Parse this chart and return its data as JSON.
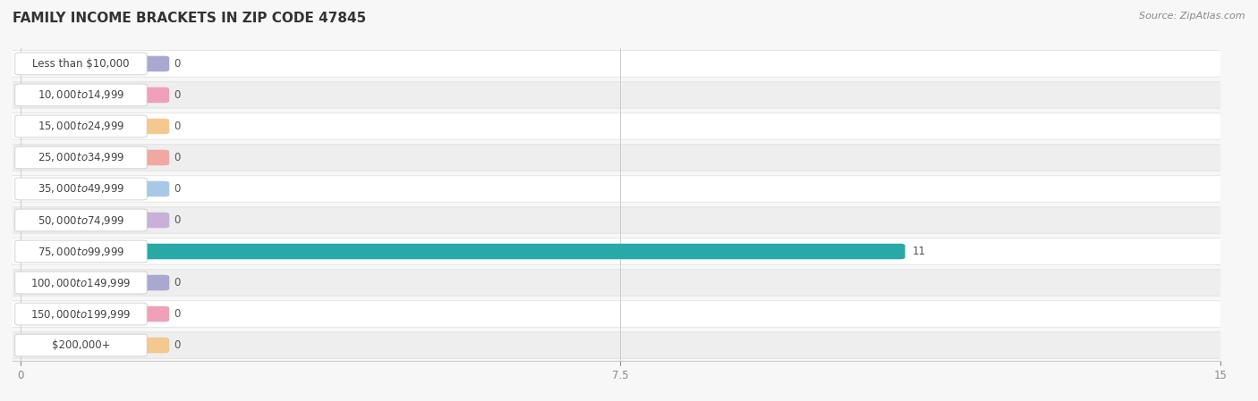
{
  "title": "FAMILY INCOME BRACKETS IN ZIP CODE 47845",
  "source": "Source: ZipAtlas.com",
  "categories": [
    "Less than $10,000",
    "$10,000 to $14,999",
    "$15,000 to $24,999",
    "$25,000 to $34,999",
    "$35,000 to $49,999",
    "$50,000 to $74,999",
    "$75,000 to $99,999",
    "$100,000 to $149,999",
    "$150,000 to $199,999",
    "$200,000+"
  ],
  "values": [
    0,
    0,
    0,
    0,
    0,
    0,
    11,
    0,
    0,
    0
  ],
  "bar_colors": [
    "#a8a8d0",
    "#f0a0b8",
    "#f5c890",
    "#f0a8a0",
    "#a8c8e8",
    "#c8b0d8",
    "#29a8a8",
    "#a8a8d0",
    "#f0a0b8",
    "#f5c890"
  ],
  "label_bg_colors": [
    "#e8e8f4",
    "#fce0e8",
    "#fdefd8",
    "#fce0d8",
    "#dce8f8",
    "#ece0f4",
    "#d8f0f0",
    "#e8e8f4",
    "#fce0e8",
    "#fdefd8"
  ],
  "xlim": [
    0,
    15
  ],
  "xticks": [
    0,
    7.5,
    15
  ],
  "background_color": "#f7f7f7",
  "title_fontsize": 11,
  "source_fontsize": 8,
  "bar_label_fontsize": 8.5,
  "value_fontsize": 8.5
}
